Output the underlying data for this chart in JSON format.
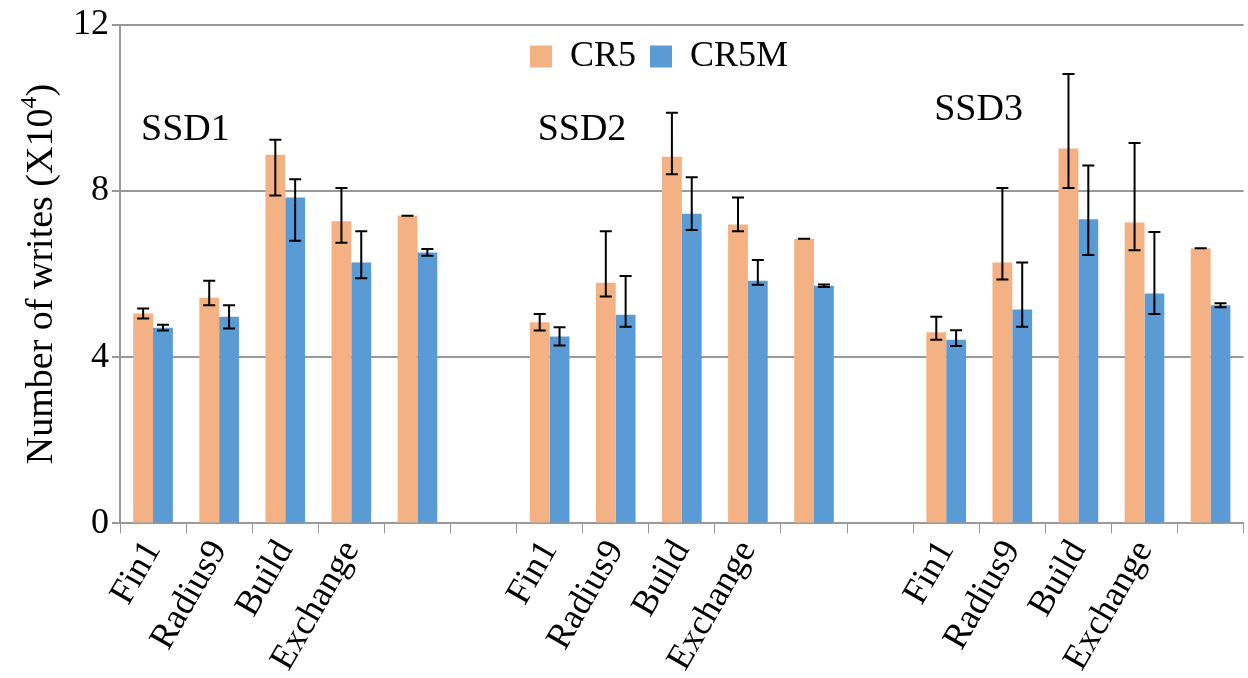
{
  "chart_data": {
    "type": "bar",
    "ylabel": "Number of writes (X10$^{4}$)",
    "categories": [
      "Fin1",
      "Radius9",
      "Build",
      "Exchange",
      null,
      null,
      "Fin1",
      "Radius9",
      "Build",
      "Exchange",
      null,
      null,
      "Fin1",
      "Radius9",
      "Build",
      "Exchange",
      null
    ],
    "series": [
      {
        "name": "CR5",
        "color": "#f4b183",
        "values": [
          5.05,
          5.43,
          8.87,
          7.27,
          7.4,
          null,
          4.84,
          5.79,
          8.82,
          7.19,
          6.85,
          null,
          4.6,
          6.28,
          9.02,
          7.24,
          6.62
        ],
        "errors": [
          0.12,
          [
            5.25,
            5.84
          ],
          [
            7.89,
            9.23
          ],
          [
            6.75,
            8.07
          ],
          0,
          null,
          0.2,
          [
            5.46,
            7.03
          ],
          [
            8.4,
            9.88
          ],
          [
            7.03,
            7.84
          ],
          0,
          null,
          [
            4.42,
            4.97
          ],
          [
            5.87,
            8.07
          ],
          [
            8.07,
            10.81
          ],
          [
            6.57,
            9.15
          ],
          0
        ]
      },
      {
        "name": "CR5M",
        "color": "#5b9bd5",
        "values": [
          4.71,
          4.97,
          7.84,
          6.28,
          6.52,
          null,
          4.5,
          5.02,
          7.45,
          5.84,
          5.72,
          null,
          4.42,
          5.15,
          7.32,
          5.53,
          5.25
        ],
        "errors": [
          0.07,
          0.28,
          [
            6.8,
            8.28
          ],
          [
            5.9,
            7.03
          ],
          0.08,
          null,
          0.22,
          [
            4.73,
            5.95
          ],
          [
            7.06,
            8.33
          ],
          [
            5.74,
            6.34
          ],
          0.03,
          null,
          [
            4.27,
            4.65
          ],
          [
            4.73,
            6.28
          ],
          [
            6.46,
            8.61
          ],
          [
            5.04,
            7.01
          ],
          0.05
        ]
      }
    ],
    "ylim": [
      0,
      12
    ],
    "yticks": [
      0,
      4,
      8,
      12
    ],
    "grid": "y",
    "legend": "top",
    "annotations": [
      "SSD1",
      "SSD2",
      "SSD3"
    ]
  }
}
